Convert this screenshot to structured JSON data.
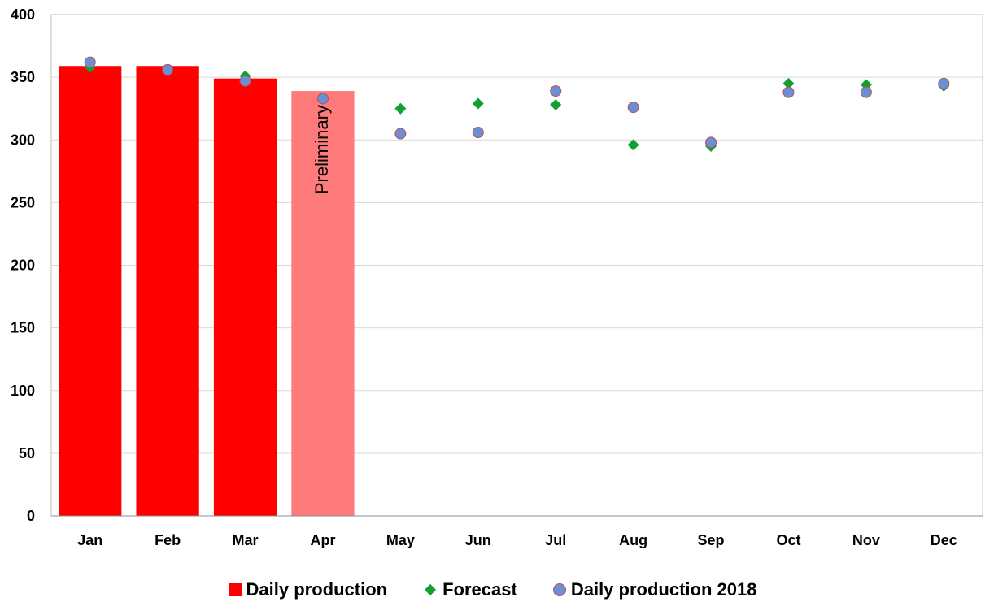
{
  "chart_data": {
    "type": "bar",
    "title": "",
    "xlabel": "",
    "ylabel": "",
    "categories": [
      "Jan",
      "Feb",
      "Mar",
      "Apr",
      "May",
      "Jun",
      "Jul",
      "Aug",
      "Sep",
      "Oct",
      "Nov",
      "Dec"
    ],
    "ylim": [
      0,
      400
    ],
    "yticks": [
      0,
      50,
      100,
      150,
      200,
      250,
      300,
      350,
      400
    ],
    "grid": true,
    "legend_position": "bottom",
    "series": [
      {
        "name": "Daily production",
        "kind": "bar",
        "color": "#ff0000",
        "values": [
          359,
          359,
          349,
          339,
          null,
          null,
          null,
          null,
          null,
          null,
          null,
          null
        ],
        "highlighted": [
          {
            "category": "Apr",
            "color": "#ff7b7b",
            "label": "Preliminary"
          }
        ]
      },
      {
        "name": "Forecast",
        "kind": "scatter",
        "marker": "diamond",
        "color": "#12a131",
        "values": [
          358,
          356,
          351,
          null,
          325,
          329,
          328,
          296,
          295,
          345,
          344,
          343
        ]
      },
      {
        "name": "Daily production 2018",
        "kind": "scatter",
        "marker": "circle",
        "color": "#6b8ed6",
        "values": [
          362,
          356,
          347,
          333,
          305,
          306,
          339,
          326,
          298,
          338,
          338,
          345
        ]
      }
    ]
  }
}
